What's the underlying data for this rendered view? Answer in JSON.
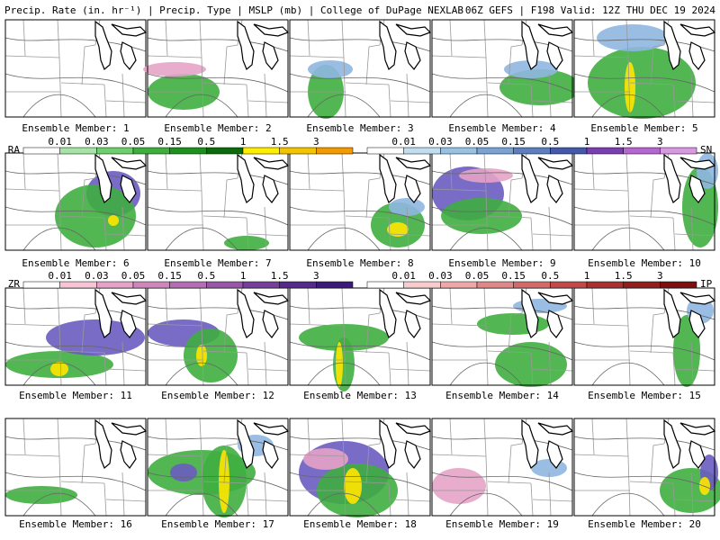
{
  "header": {
    "title": "Precip. Rate (in. hr⁻¹) | Precip. Type | MSLP (mb) | College of DuPage NEXLAB",
    "run": "06Z GEFS | F198 Valid: 12Z THU DEC 19 2024"
  },
  "panels": [
    "Ensemble Member: 1",
    "Ensemble Member: 2",
    "Ensemble Member: 3",
    "Ensemble Member: 4",
    "Ensemble Member: 5",
    "Ensemble Member: 6",
    "Ensemble Member: 7",
    "Ensemble Member: 8",
    "Ensemble Member: 9",
    "Ensemble Member: 10",
    "Ensemble Member: 11",
    "Ensemble Member: 12",
    "Ensemble Member: 13",
    "Ensemble Member: 14",
    "Ensemble Member: 15",
    "Ensemble Member: 16",
    "Ensemble Member: 17",
    "Ensemble Member: 18",
    "Ensemble Member: 19",
    "Ensemble Member: 20"
  ],
  "legends": [
    {
      "type": "RA",
      "labels": [
        "0.01",
        "0.03",
        "0.05",
        "0.15",
        "0.5",
        "1",
        "1.5",
        "3"
      ],
      "colors": [
        "#ffffff",
        "#a6e3a6",
        "#6fcf6f",
        "#3fae3f",
        "#1f8f1f",
        "#0c6a0c",
        "#ffee00",
        "#f5c400",
        "#f39a00"
      ]
    },
    {
      "type": "SN",
      "labels": [
        "0.01",
        "0.03",
        "0.05",
        "0.15",
        "0.5",
        "1",
        "1.5",
        "3"
      ],
      "colors": [
        "#ffffff",
        "#c2dcf0",
        "#98c2e4",
        "#7aa2d2",
        "#5d7fc0",
        "#4459a8",
        "#7a3fb0",
        "#b467cf",
        "#d999e0"
      ]
    },
    {
      "type": "ZR",
      "labels": [
        "0.01",
        "0.03",
        "0.05",
        "0.15",
        "0.5",
        "1",
        "1.5",
        "3"
      ],
      "colors": [
        "#ffffff",
        "#f6c4d4",
        "#e6a3c7",
        "#cf86bd",
        "#b46cb3",
        "#9756a8",
        "#763f9c",
        "#56298c",
        "#3c1a7c"
      ]
    },
    {
      "type": "IP",
      "labels": [
        "0.01",
        "0.03",
        "0.05",
        "0.15",
        "0.5",
        "1",
        "1.5",
        "3"
      ],
      "colors": [
        "#ffffff",
        "#f6cccc",
        "#eea8a8",
        "#e08888",
        "#d26a6a",
        "#c04a4a",
        "#a83232",
        "#902020",
        "#7a1010"
      ]
    }
  ]
}
